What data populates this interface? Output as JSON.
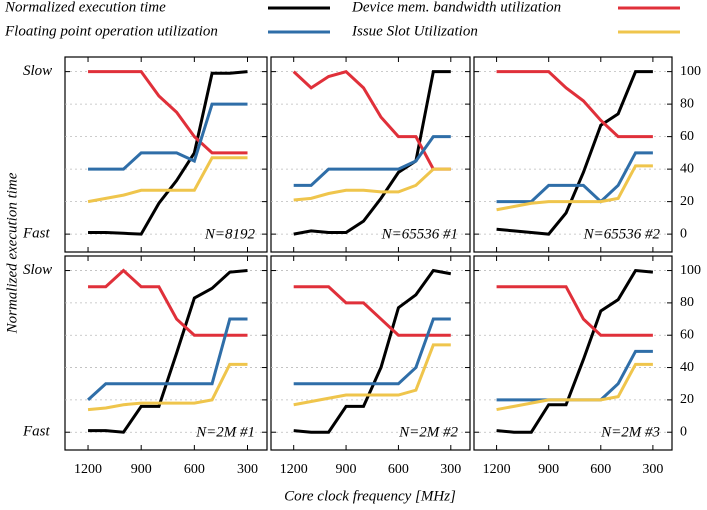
{
  "chart_data": [
    {
      "type": "line",
      "label": "N=8192",
      "ylabel": "Normalized execution time",
      "xlabel": "Core clock frequency [MHz]",
      "x": [
        1200,
        1100,
        1000,
        900,
        800,
        700,
        600,
        500,
        400,
        300
      ],
      "xlim": [
        1330,
        190
      ],
      "xticks": [
        1200,
        900,
        600,
        300
      ],
      "ylim": [
        -11,
        109
      ],
      "yticks": [
        {
          "value": 0,
          "label": "Fast"
        },
        {
          "value": 100,
          "label": "Slow"
        }
      ],
      "y2lim": [
        -11,
        109
      ],
      "y2ticks": [
        0,
        20,
        40,
        60,
        80,
        100
      ],
      "grid": true,
      "series": [
        {
          "name": "Normalized execution time",
          "color": "#000000",
          "values": [
            1,
            1,
            0.5,
            0,
            19,
            33,
            50,
            99,
            99,
            100
          ]
        },
        {
          "name": "Device mem. bandwidth utilization",
          "color": "#e0303a",
          "axis": "y2",
          "values": [
            100,
            100,
            100,
            100,
            85,
            75,
            60,
            50,
            50,
            50
          ]
        },
        {
          "name": "Floating point operation utilization",
          "color": "#2f6ea8",
          "axis": "y2",
          "values": [
            40,
            40,
            40,
            50,
            50,
            50,
            45,
            80,
            80,
            80
          ]
        },
        {
          "name": "Issue Slot Utilization",
          "color": "#efc54c",
          "axis": "y2",
          "values": [
            20,
            22,
            24,
            27,
            27,
            27,
            27,
            47,
            47,
            47
          ]
        }
      ]
    },
    {
      "type": "line",
      "label": "N=65536 #1",
      "x": [
        1200,
        1100,
        1000,
        900,
        800,
        700,
        600,
        500,
        400,
        300
      ],
      "xlim": [
        1330,
        190
      ],
      "xticks": [
        1200,
        900,
        600,
        300
      ],
      "ylim": [
        -11,
        109
      ],
      "yticks": [
        {
          "value": 0,
          "label": "Fast"
        },
        {
          "value": 100,
          "label": "Slow"
        }
      ],
      "y2lim": [
        -11,
        109
      ],
      "y2ticks": [
        0,
        20,
        40,
        60,
        80,
        100
      ],
      "grid": true,
      "series": [
        {
          "name": "Normalized execution time",
          "color": "#000000",
          "values": [
            0,
            2,
            1,
            1,
            8,
            22,
            38,
            45,
            100,
            100
          ]
        },
        {
          "name": "Device mem. bandwidth utilization",
          "color": "#e0303a",
          "axis": "y2",
          "values": [
            100,
            90,
            97,
            100,
            90,
            72,
            60,
            60,
            40,
            40
          ]
        },
        {
          "name": "Floating point operation utilization",
          "color": "#2f6ea8",
          "axis": "y2",
          "values": [
            30,
            30,
            40,
            40,
            40,
            40,
            40,
            45,
            60,
            60
          ]
        },
        {
          "name": "Issue Slot Utilization",
          "color": "#efc54c",
          "axis": "y2",
          "values": [
            21,
            22,
            25,
            27,
            27,
            26,
            26,
            30,
            40,
            40
          ]
        }
      ]
    },
    {
      "type": "line",
      "label": "N=65536 #2",
      "x": [
        1200,
        1100,
        1000,
        900,
        800,
        700,
        600,
        500,
        400,
        300
      ],
      "xlim": [
        1330,
        190
      ],
      "xticks": [
        1200,
        900,
        600,
        300
      ],
      "ylim": [
        -11,
        109
      ],
      "yticks": [
        {
          "value": 0,
          "label": "Fast"
        },
        {
          "value": 100,
          "label": "Slow"
        }
      ],
      "y2lim": [
        -11,
        109
      ],
      "y2ticks": [
        0,
        20,
        40,
        60,
        80,
        100
      ],
      "grid": true,
      "series": [
        {
          "name": "Normalized execution time",
          "color": "#000000",
          "values": [
            3,
            2,
            1,
            0,
            13,
            38,
            67,
            74,
            100,
            100
          ]
        },
        {
          "name": "Device mem. bandwidth utilization",
          "color": "#e0303a",
          "axis": "y2",
          "values": [
            100,
            100,
            100,
            100,
            90,
            82,
            70,
            60,
            60,
            60
          ]
        },
        {
          "name": "Floating point operation utilization",
          "color": "#2f6ea8",
          "axis": "y2",
          "values": [
            20,
            20,
            20,
            30,
            30,
            30,
            20,
            30,
            50,
            50
          ]
        },
        {
          "name": "Issue Slot Utilization",
          "color": "#efc54c",
          "axis": "y2",
          "values": [
            15,
            17,
            19,
            20,
            20,
            20,
            20,
            22,
            42,
            42
          ]
        }
      ]
    },
    {
      "type": "line",
      "label": "N=2M #1",
      "x": [
        1200,
        1100,
        1000,
        900,
        800,
        700,
        600,
        500,
        400,
        300
      ],
      "xlim": [
        1330,
        190
      ],
      "xticks": [
        1200,
        900,
        600,
        300
      ],
      "ylim": [
        -11,
        109
      ],
      "yticks": [
        {
          "value": 0,
          "label": "Fast"
        },
        {
          "value": 100,
          "label": "Slow"
        }
      ],
      "y2lim": [
        -11,
        109
      ],
      "y2ticks": [
        0,
        20,
        40,
        60,
        80,
        100
      ],
      "grid": true,
      "series": [
        {
          "name": "Normalized execution time",
          "color": "#000000",
          "values": [
            1,
            1,
            0,
            16,
            16,
            49,
            83,
            89,
            99,
            100
          ]
        },
        {
          "name": "Device mem. bandwidth utilization",
          "color": "#e0303a",
          "axis": "y2",
          "values": [
            90,
            90,
            100,
            90,
            90,
            70,
            60,
            60,
            60,
            60
          ]
        },
        {
          "name": "Floating point operation utilization",
          "color": "#2f6ea8",
          "axis": "y2",
          "values": [
            20,
            30,
            30,
            30,
            30,
            30,
            30,
            30,
            70,
            70
          ]
        },
        {
          "name": "Issue Slot Utilization",
          "color": "#efc54c",
          "axis": "y2",
          "values": [
            14,
            15,
            17,
            18,
            18,
            18,
            18,
            20,
            42,
            42
          ]
        }
      ]
    },
    {
      "type": "line",
      "label": "N=2M #2",
      "x": [
        1200,
        1100,
        1000,
        900,
        800,
        700,
        600,
        500,
        400,
        300
      ],
      "xlim": [
        1330,
        190
      ],
      "xticks": [
        1200,
        900,
        600,
        300
      ],
      "ylim": [
        -11,
        109
      ],
      "yticks": [
        {
          "value": 0,
          "label": "Fast"
        },
        {
          "value": 100,
          "label": "Slow"
        }
      ],
      "y2lim": [
        -11,
        109
      ],
      "y2ticks": [
        0,
        20,
        40,
        60,
        80,
        100
      ],
      "grid": true,
      "series": [
        {
          "name": "Normalized execution time",
          "color": "#000000",
          "values": [
            1,
            0,
            0,
            16,
            16,
            40,
            77,
            85,
            100,
            98
          ]
        },
        {
          "name": "Device mem. bandwidth utilization",
          "color": "#e0303a",
          "axis": "y2",
          "values": [
            90,
            90,
            90,
            80,
            80,
            70,
            60,
            60,
            60,
            60
          ]
        },
        {
          "name": "Floating point operation utilization",
          "color": "#2f6ea8",
          "axis": "y2",
          "values": [
            30,
            30,
            30,
            30,
            30,
            30,
            30,
            40,
            70,
            70
          ]
        },
        {
          "name": "Issue Slot Utilization",
          "color": "#efc54c",
          "axis": "y2",
          "values": [
            17,
            19,
            21,
            23,
            23,
            23,
            23,
            26,
            54,
            54
          ]
        }
      ]
    },
    {
      "type": "line",
      "label": "N=2M #3",
      "x": [
        1200,
        1100,
        1000,
        900,
        800,
        700,
        600,
        500,
        400,
        300
      ],
      "xlim": [
        1330,
        190
      ],
      "xticks": [
        1200,
        900,
        600,
        300
      ],
      "ylim": [
        -11,
        109
      ],
      "yticks": [
        {
          "value": 0,
          "label": "Fast"
        },
        {
          "value": 100,
          "label": "Slow"
        }
      ],
      "y2lim": [
        -11,
        109
      ],
      "y2ticks": [
        0,
        20,
        40,
        60,
        80,
        100
      ],
      "grid": true,
      "series": [
        {
          "name": "Normalized execution time",
          "color": "#000000",
          "values": [
            1,
            0,
            0,
            17,
            17,
            45,
            75,
            82,
            100,
            99
          ]
        },
        {
          "name": "Device mem. bandwidth utilization",
          "color": "#e0303a",
          "axis": "y2",
          "values": [
            90,
            90,
            90,
            90,
            90,
            70,
            60,
            60,
            60,
            60
          ]
        },
        {
          "name": "Floating point operation utilization",
          "color": "#2f6ea8",
          "axis": "y2",
          "values": [
            20,
            20,
            20,
            20,
            20,
            20,
            20,
            30,
            50,
            50
          ]
        },
        {
          "name": "Issue Slot Utilization",
          "color": "#efc54c",
          "axis": "y2",
          "values": [
            14,
            16,
            18,
            20,
            20,
            20,
            20,
            22,
            42,
            42
          ]
        }
      ]
    }
  ]
}
